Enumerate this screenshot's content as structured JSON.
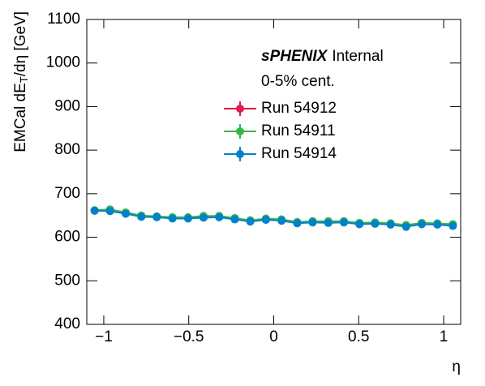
{
  "chart_data": {
    "type": "line",
    "ylabel": [
      "EMCal dE",
      "T",
      "/dη [GeV]"
    ],
    "xlabel": "η",
    "annotations": [
      "sPHENIX",
      "Internal",
      "0-5% cent."
    ],
    "x": [
      -1.054,
      -0.963,
      -0.871,
      -0.779,
      -0.688,
      -0.596,
      -0.504,
      -0.413,
      -0.321,
      -0.229,
      -0.138,
      -0.046,
      0.046,
      0.138,
      0.229,
      0.321,
      0.413,
      0.504,
      0.596,
      0.688,
      0.779,
      0.871,
      0.963,
      1.054
    ],
    "series": [
      {
        "name": "Run 54912",
        "color": "#e6194b",
        "values": [
          661,
          661,
          655,
          648,
          647,
          644,
          644,
          647,
          648,
          642,
          637,
          641,
          639,
          633,
          635,
          635,
          635,
          631,
          632,
          630,
          626,
          631,
          630,
          628
        ]
      },
      {
        "name": "Run 54911",
        "color": "#3cb44b",
        "values": [
          662,
          664,
          657,
          650,
          648,
          646,
          646,
          649,
          649,
          644,
          639,
          643,
          641,
          635,
          637,
          637,
          637,
          633,
          634,
          632,
          628,
          633,
          632,
          630
        ]
      },
      {
        "name": "Run 54914",
        "color": "#0082c8",
        "values": [
          661,
          660,
          654,
          647,
          646,
          643,
          643,
          645,
          646,
          641,
          636,
          640,
          638,
          632,
          634,
          633,
          634,
          630,
          631,
          629,
          624,
          630,
          629,
          626
        ]
      }
    ],
    "xlim": [
      -1.1,
      1.1
    ],
    "ylim": [
      400,
      1100
    ],
    "xticks": [
      {
        "value": -1,
        "label": "−1"
      },
      {
        "value": -0.5,
        "label": "−0.5"
      },
      0,
      0.5,
      1
    ],
    "yticks": [
      400,
      500,
      600,
      700,
      800,
      900,
      1000,
      1100
    ]
  }
}
